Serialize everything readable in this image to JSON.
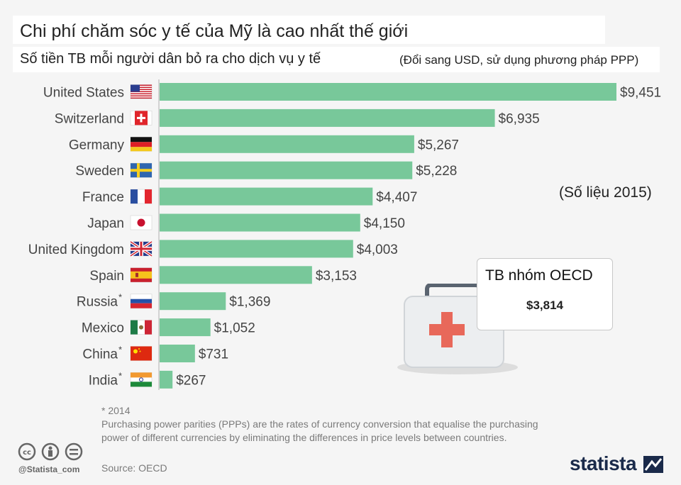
{
  "header": {
    "title": "Chi phí chăm sóc y tế của Mỹ là cao nhất thế giới",
    "subtitle": "Số tiền TB mỗi người dân bỏ ra cho dịch vụ y tế",
    "unit_note": "(Đổi sang USD, sử dụng phương pháp PPP)"
  },
  "year_note": "(Số liệu 2015)",
  "oecd": {
    "label": "TB nhóm OECD",
    "value_label": "$3,814",
    "value": 3814
  },
  "footer": {
    "asterisk_note": "* 2014",
    "ppp_note": "Purchasing power parities (PPPs) are the rates of currency conversion that equalise the purchasing power of different currencies by eliminating the differences in price levels between countries.",
    "source": "Source: OECD",
    "handle": "@Statista_com",
    "brand": "statista"
  },
  "colors": {
    "bar": "#78c89a",
    "background": "#f5f5f5",
    "axis": "#b0b0b0"
  },
  "chart_data": {
    "type": "bar",
    "orientation": "horizontal",
    "title": "Chi phí chăm sóc y tế của Mỹ là cao nhất thế giới",
    "subtitle": "Số tiền TB mỗi người dân bỏ ra cho dịch vụ y tế",
    "xlabel": "",
    "ylabel": "",
    "xlim": [
      0,
      9451
    ],
    "categories": [
      "United States",
      "Switzerland",
      "Germany",
      "Sweden",
      "France",
      "Japan",
      "United Kingdom",
      "Spain",
      "Russia",
      "Mexico",
      "China",
      "India"
    ],
    "asterisk": [
      false,
      false,
      false,
      false,
      false,
      false,
      false,
      false,
      true,
      false,
      true,
      true
    ],
    "flags": [
      "us-flag-icon",
      "ch-flag-icon",
      "de-flag-icon",
      "se-flag-icon",
      "fr-flag-icon",
      "jp-flag-icon",
      "gb-flag-icon",
      "es-flag-icon",
      "ru-flag-icon",
      "mx-flag-icon",
      "cn-flag-icon",
      "in-flag-icon"
    ],
    "values": [
      9451,
      6935,
      5267,
      5228,
      4407,
      4150,
      4003,
      3153,
      1369,
      1052,
      731,
      267
    ],
    "value_labels": [
      "$9,451",
      "$6,935",
      "$5,267",
      "$5,228",
      "$4,407",
      "$4,150",
      "$4,003",
      "$3,153",
      "$1,369",
      "$1,052",
      "$731",
      "$267"
    ]
  }
}
